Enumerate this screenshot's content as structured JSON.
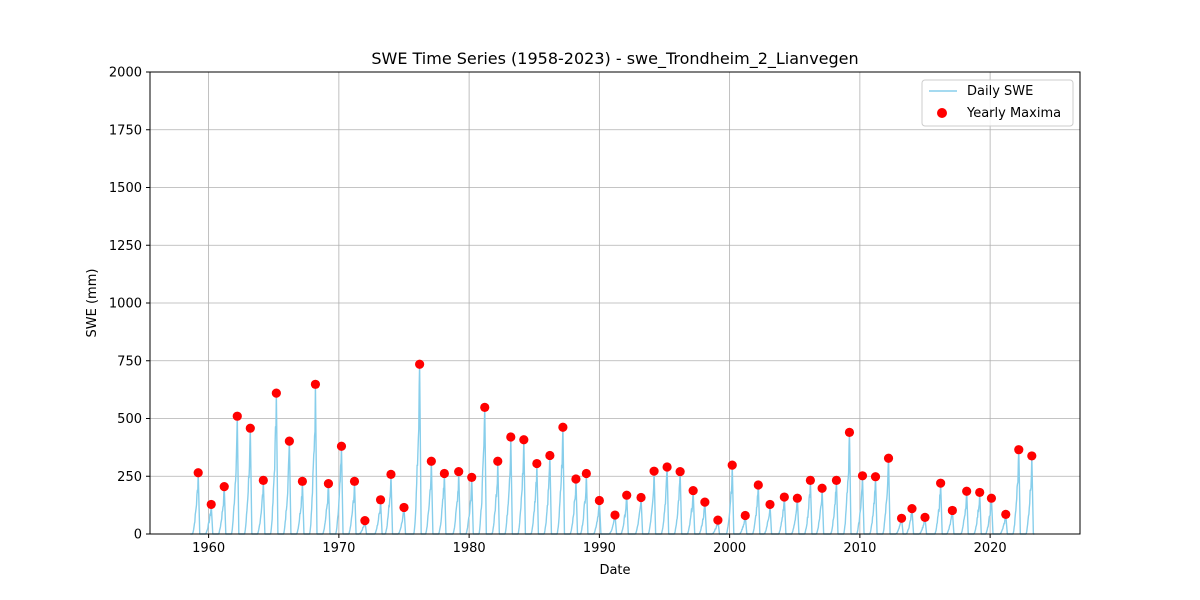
{
  "chart_data": {
    "type": "line",
    "title": "SWE Time Series (1958-2023) - swe_Trondheim_2_Lianvegen",
    "xlabel": "Date",
    "ylabel": "SWE (mm)",
    "xlim": [
      1955.5,
      2026.9
    ],
    "ylim": [
      0,
      2000
    ],
    "xticks": [
      1960,
      1970,
      1980,
      1990,
      2000,
      2010,
      2020
    ],
    "yticks": [
      0,
      250,
      500,
      750,
      1000,
      1250,
      1500,
      1750,
      2000
    ],
    "grid": true,
    "legend": "top-right",
    "series": [
      {
        "name": "Daily SWE",
        "kind": "line",
        "color": "#87ceeb",
        "note": "daily series peaks each winter at the yearly maximum and returns to zero each summer"
      },
      {
        "name": "Yearly Maxima",
        "kind": "scatter",
        "color": "#ff0000",
        "points": [
          {
            "x": 1959.2,
            "y": 265
          },
          {
            "x": 1960.2,
            "y": 128
          },
          {
            "x": 1961.2,
            "y": 205
          },
          {
            "x": 1962.2,
            "y": 510
          },
          {
            "x": 1963.2,
            "y": 458
          },
          {
            "x": 1964.2,
            "y": 232
          },
          {
            "x": 1965.2,
            "y": 610
          },
          {
            "x": 1966.2,
            "y": 402
          },
          {
            "x": 1967.2,
            "y": 228
          },
          {
            "x": 1968.2,
            "y": 648
          },
          {
            "x": 1969.2,
            "y": 218
          },
          {
            "x": 1970.2,
            "y": 380
          },
          {
            "x": 1971.2,
            "y": 228
          },
          {
            "x": 1972.0,
            "y": 58
          },
          {
            "x": 1973.2,
            "y": 148
          },
          {
            "x": 1974.0,
            "y": 258
          },
          {
            "x": 1975.0,
            "y": 115
          },
          {
            "x": 1976.2,
            "y": 735
          },
          {
            "x": 1977.1,
            "y": 315
          },
          {
            "x": 1978.1,
            "y": 262
          },
          {
            "x": 1979.2,
            "y": 270
          },
          {
            "x": 1980.2,
            "y": 245
          },
          {
            "x": 1981.2,
            "y": 548
          },
          {
            "x": 1982.2,
            "y": 315
          },
          {
            "x": 1983.2,
            "y": 420
          },
          {
            "x": 1984.2,
            "y": 408
          },
          {
            "x": 1985.2,
            "y": 305
          },
          {
            "x": 1986.2,
            "y": 340
          },
          {
            "x": 1987.2,
            "y": 462
          },
          {
            "x": 1988.2,
            "y": 238
          },
          {
            "x": 1989.0,
            "y": 262
          },
          {
            "x": 1990.0,
            "y": 145
          },
          {
            "x": 1991.2,
            "y": 82
          },
          {
            "x": 1992.1,
            "y": 168
          },
          {
            "x": 1993.2,
            "y": 158
          },
          {
            "x": 1994.2,
            "y": 272
          },
          {
            "x": 1995.2,
            "y": 290
          },
          {
            "x": 1996.2,
            "y": 270
          },
          {
            "x": 1997.2,
            "y": 188
          },
          {
            "x": 1998.1,
            "y": 138
          },
          {
            "x": 1999.1,
            "y": 60
          },
          {
            "x": 2000.2,
            "y": 298
          },
          {
            "x": 2001.2,
            "y": 80
          },
          {
            "x": 2002.2,
            "y": 212
          },
          {
            "x": 2003.1,
            "y": 128
          },
          {
            "x": 2004.2,
            "y": 160
          },
          {
            "x": 2005.2,
            "y": 155
          },
          {
            "x": 2006.2,
            "y": 232
          },
          {
            "x": 2007.1,
            "y": 198
          },
          {
            "x": 2008.2,
            "y": 232
          },
          {
            "x": 2009.2,
            "y": 440
          },
          {
            "x": 2010.2,
            "y": 252
          },
          {
            "x": 2011.2,
            "y": 248
          },
          {
            "x": 2012.2,
            "y": 328
          },
          {
            "x": 2013.2,
            "y": 68
          },
          {
            "x": 2014.0,
            "y": 110
          },
          {
            "x": 2015.0,
            "y": 72
          },
          {
            "x": 2016.2,
            "y": 220
          },
          {
            "x": 2017.1,
            "y": 102
          },
          {
            "x": 2018.2,
            "y": 185
          },
          {
            "x": 2019.2,
            "y": 180
          },
          {
            "x": 2020.1,
            "y": 155
          },
          {
            "x": 2021.2,
            "y": 85
          },
          {
            "x": 2022.2,
            "y": 365
          },
          {
            "x": 2023.2,
            "y": 338
          }
        ]
      }
    ]
  },
  "colors": {
    "line": "#87ceeb",
    "maxima": "#ff0000",
    "grid": "#b0b0b0",
    "axis": "#000000"
  }
}
